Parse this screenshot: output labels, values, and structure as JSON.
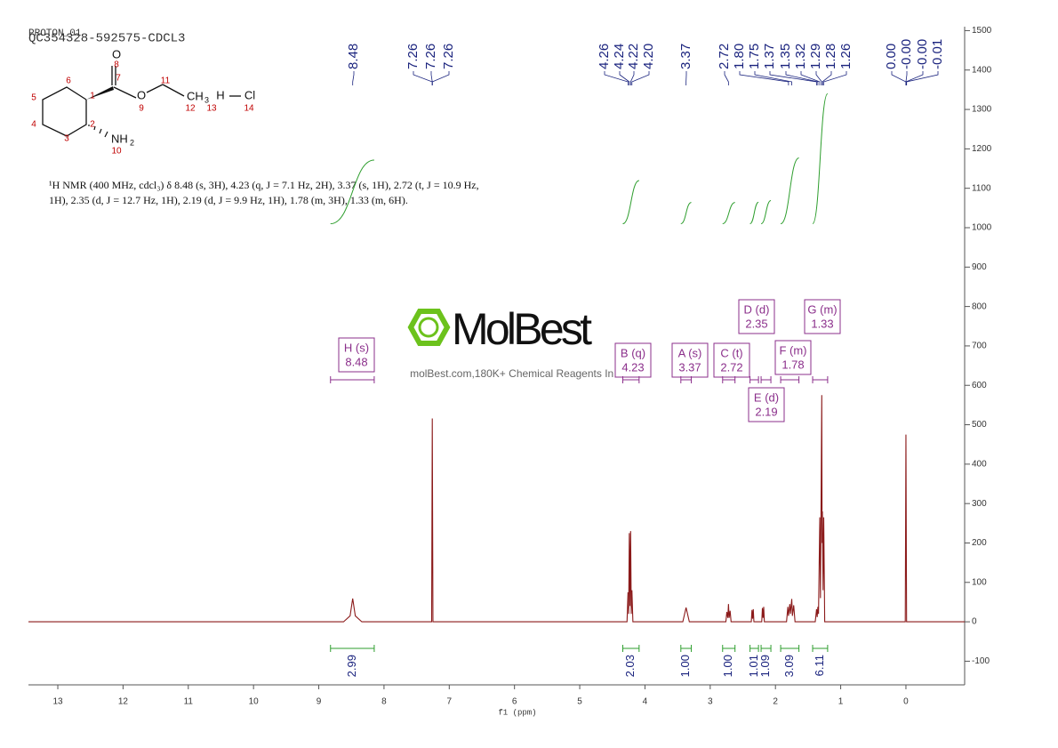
{
  "header": {
    "subtitle": "PROTON_01",
    "title": "QC354328-592575-CDCL3"
  },
  "structure": {
    "labels": [
      "O",
      "8",
      "7",
      "1",
      "6",
      "5",
      "4",
      "3",
      "2",
      "O",
      "9",
      "11",
      "CH",
      "3",
      "12",
      "H",
      "13",
      "Cl",
      "14",
      "NH",
      "2",
      "10"
    ]
  },
  "description": [
    "¹H NMR (400 MHz, cdcl₃) δ 8.48 (s, 3H), 4.23 (q, J = 7.1 Hz, 2H), 3.37 (s, 1H), 2.72 (t, J = 10.9 Hz,",
    "1H), 2.35 (d, J = 12.7 Hz, 1H), 2.19 (d, J = 9.9 Hz, 1H), 1.78 (m, 3H), 1.33 (m, 6H)."
  ],
  "watermark": {
    "brand": "MolBest",
    "tagline": "molBest.com,180K+ Chemical Reagents In Stock."
  },
  "chart_data": {
    "type": "nmr",
    "x_label": "f1 (ppm)",
    "xlim": [
      13.45,
      -0.9
    ],
    "xticks": [
      13,
      12,
      11,
      10,
      9,
      8,
      7,
      6,
      5,
      4,
      3,
      2,
      1,
      0
    ],
    "ylim": [
      -160,
      1510
    ],
    "yticks": [
      -100,
      0,
      100,
      200,
      300,
      400,
      500,
      600,
      700,
      800,
      900,
      1000,
      1100,
      1200,
      1300,
      1400,
      1500
    ],
    "color": "#8b1a1a",
    "integral_color": "#2e9e2e",
    "label_color": "#1a237e",
    "multiplet_color": "#8b2f8b",
    "x": [
      13.45,
      8.62,
      8.52,
      8.48,
      8.44,
      8.34,
      7.27,
      7.26,
      7.25,
      4.275,
      4.26,
      4.25,
      4.24,
      4.23,
      4.22,
      4.21,
      4.2,
      4.185,
      3.42,
      3.37,
      3.32,
      2.76,
      2.745,
      2.73,
      2.72,
      2.71,
      2.695,
      2.68,
      2.37,
      2.36,
      2.35,
      2.34,
      2.33,
      2.21,
      2.2,
      2.19,
      2.18,
      2.17,
      1.83,
      1.81,
      1.8,
      1.78,
      1.77,
      1.75,
      1.74,
      1.72,
      1.7,
      1.39,
      1.37,
      1.36,
      1.35,
      1.34,
      1.32,
      1.31,
      1.29,
      1.285,
      1.28,
      1.27,
      1.26,
      1.245,
      0.01,
      0,
      -0.01,
      -0.9
    ],
    "values": [
      0,
      0,
      15,
      59,
      15,
      0,
      0,
      516,
      0,
      0,
      75,
      20,
      225,
      40,
      230,
      20,
      80,
      0,
      0,
      36,
      0,
      0,
      25,
      10,
      45,
      10,
      28,
      0,
      0,
      30,
      8,
      32,
      0,
      0,
      35,
      10,
      38,
      0,
      0,
      38,
      15,
      45,
      20,
      58,
      15,
      42,
      0,
      0,
      32,
      12,
      38,
      20,
      265,
      60,
      575,
      200,
      280,
      80,
      265,
      0,
      0,
      475,
      0,
      0
    ],
    "peak_labels": [
      "8.48",
      "7.26",
      "7.26",
      "7.26",
      "4.26",
      "4.24",
      "4.22",
      "4.20",
      "3.37",
      "2.72",
      "1.80",
      "1.75",
      "1.37",
      "1.35",
      "1.32",
      "1.29",
      "1.28",
      "1.26",
      "0.00",
      "-0.00",
      "-0.00",
      "-0.01"
    ],
    "multiplets": [
      {
        "label": "H (s)",
        "shift": 8.48,
        "range": [
          8.82,
          8.15
        ]
      },
      {
        "label": "B (q)",
        "shift": 4.23,
        "range": [
          4.34,
          4.09
        ]
      },
      {
        "label": "A (s)",
        "shift": 3.37,
        "range": [
          3.45,
          3.29
        ]
      },
      {
        "label": "C (t)",
        "shift": 2.72,
        "range": [
          2.81,
          2.62
        ]
      },
      {
        "label": "D (d)",
        "shift": 2.35,
        "range": [
          2.39,
          2.26
        ]
      },
      {
        "label": "E (d)",
        "shift": 2.19,
        "range": [
          2.22,
          2.07
        ]
      },
      {
        "label": "F (m)",
        "shift": 1.78,
        "range": [
          1.92,
          1.64
        ]
      },
      {
        "label": "G (m)",
        "shift": 1.33,
        "range": [
          1.43,
          1.2
        ]
      }
    ],
    "integrals": [
      {
        "value": 2.99,
        "label": "2.99",
        "range": [
          8.82,
          8.15
        ]
      },
      {
        "value": 2.03,
        "label": "2.03",
        "range": [
          4.34,
          4.09
        ]
      },
      {
        "value": 1.0,
        "label": "1.00",
        "range": [
          3.45,
          3.29
        ]
      },
      {
        "value": 1.0,
        "label": "1.00",
        "range": [
          2.81,
          2.62
        ]
      },
      {
        "value": 1.01,
        "label": "1.01",
        "range": [
          2.39,
          2.26
        ]
      },
      {
        "value": 1.09,
        "label": "1.09",
        "range": [
          2.22,
          2.07
        ]
      },
      {
        "value": 3.09,
        "label": "3.09",
        "range": [
          1.92,
          1.64
        ]
      },
      {
        "value": 6.11,
        "label": "6.11",
        "range": [
          1.43,
          1.2
        ]
      }
    ]
  }
}
